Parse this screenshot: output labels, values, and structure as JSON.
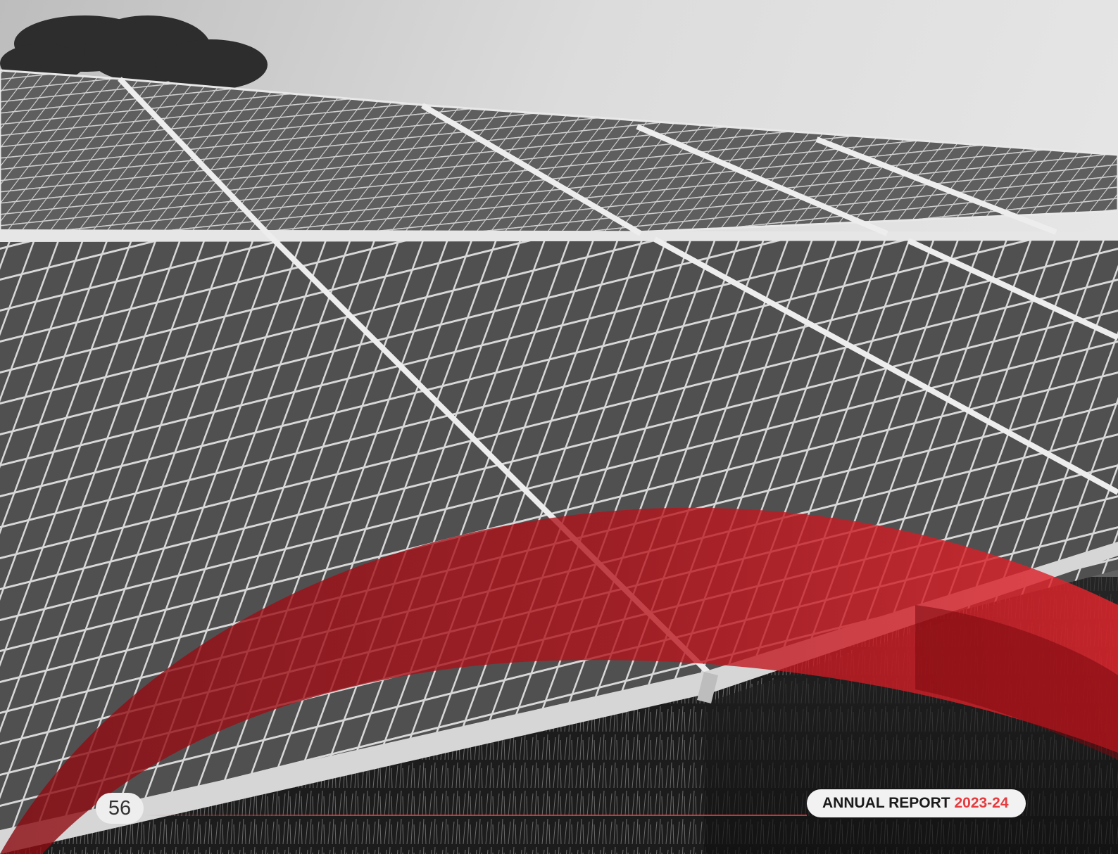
{
  "footer": {
    "page_number": "56",
    "report_title": "ANNUAL REPORT",
    "report_year": "2023-24"
  },
  "photo": {
    "subject": "solar-panel-array",
    "accent_color": "#e63b3f",
    "overlay_color": "#c9111b"
  }
}
